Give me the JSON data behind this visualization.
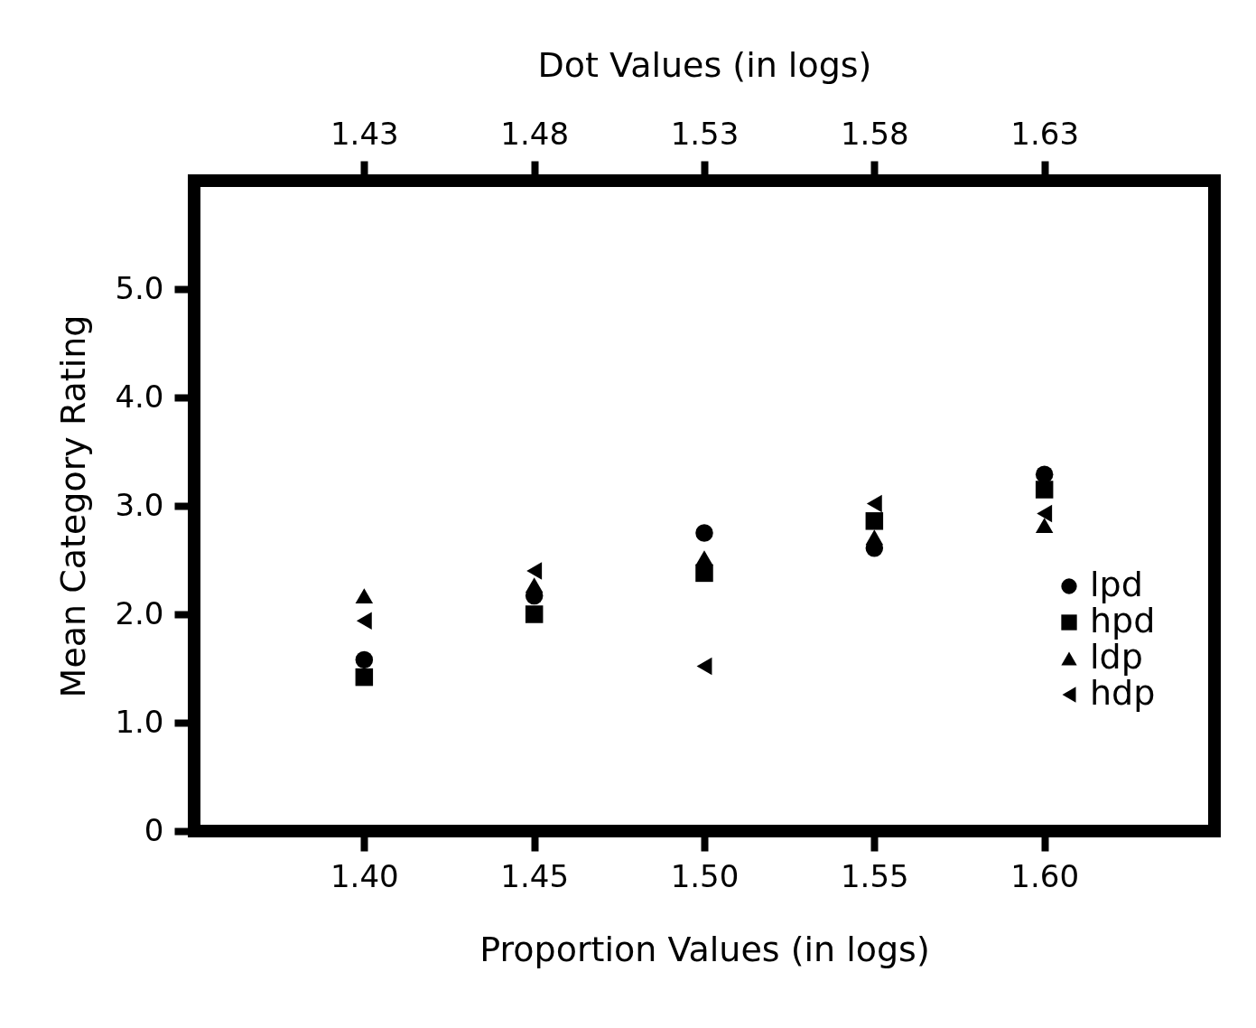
{
  "chart_data": {
    "type": "scatter",
    "x2label": "Dot Values (in logs)",
    "xlabel": "Proportion Values (in logs)",
    "ylabel": "Mean Category Rating",
    "x": [
      1.4,
      1.45,
      1.5,
      1.55,
      1.6
    ],
    "series": [
      {
        "name": "lpd",
        "color": "#000000",
        "marker": "circle",
        "values": [
          1.58,
          2.17,
          2.75,
          2.61,
          3.29
        ]
      },
      {
        "name": "hpd",
        "color": "#000000",
        "marker": "square",
        "values": [
          1.42,
          2.0,
          2.38,
          2.86,
          3.15
        ]
      },
      {
        "name": "ldp",
        "color": "#000000",
        "marker": "triangle",
        "values": [
          2.17,
          2.27,
          2.52,
          2.71,
          2.82
        ]
      },
      {
        "name": "hdp",
        "color": "#000000",
        "marker": "triangle-left",
        "values": [
          1.94,
          2.4,
          1.52,
          3.02,
          2.93
        ]
      }
    ],
    "xlim": [
      1.35,
      1.65
    ],
    "xticks": [
      {
        "value": 1.4,
        "label": "1.40"
      },
      1.45,
      {
        "value": 1.5,
        "label": "1.50"
      },
      1.55,
      {
        "value": 1.6,
        "label": "1.60"
      }
    ],
    "x2lim": [
      1.38,
      1.68
    ],
    "x2ticks": [
      1.43,
      1.48,
      1.53,
      1.58,
      1.63
    ],
    "ylim": [
      0,
      6
    ],
    "yticks": [
      0,
      {
        "value": 1,
        "label": "1.0"
      },
      {
        "value": 2,
        "label": "2.0"
      },
      {
        "value": 3,
        "label": "3.0"
      },
      {
        "value": 4,
        "label": "4.0"
      },
      {
        "value": 5,
        "label": "5.0"
      }
    ],
    "grid": false,
    "legend": "right"
  }
}
